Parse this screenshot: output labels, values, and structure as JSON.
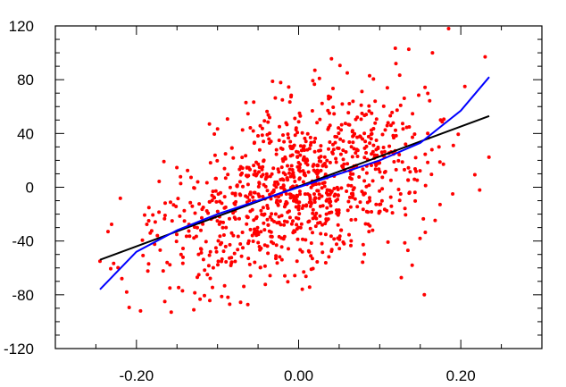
{
  "chart_data": {
    "type": "scatter",
    "title": "",
    "xlabel": "",
    "ylabel": "",
    "xlim": [
      -0.3,
      0.3
    ],
    "ylim": [
      -120,
      120
    ],
    "grid": false,
    "x_ticks": [
      {
        "value": -0.2,
        "label": "-0.20"
      },
      {
        "value": 0.0,
        "label": "0.00"
      },
      {
        "value": 0.2,
        "label": "0.20"
      }
    ],
    "x_minor_step": 0.05,
    "y_ticks": [
      {
        "value": 120,
        "label": "120"
      },
      {
        "value": 80,
        "label": "80"
      },
      {
        "value": 40,
        "label": "40"
      },
      {
        "value": 0,
        "label": "0"
      },
      {
        "value": -40,
        "label": "-40"
      },
      {
        "value": -80,
        "label": "-80"
      },
      {
        "value": -120,
        "label": "-120"
      }
    ],
    "y_minor_step": 10,
    "scatter": {
      "color": "#ff0000",
      "count": 1000,
      "slope": 220,
      "noise_sd": 30,
      "x_range": [
        -0.245,
        0.235
      ],
      "points_sample": [
        [
          -0.245,
          -55
        ],
        [
          -0.235,
          -33
        ],
        [
          -0.218,
          -68
        ],
        [
          -0.212,
          -78
        ],
        [
          -0.195,
          -92
        ],
        [
          -0.185,
          -57
        ],
        [
          -0.165,
          -85
        ],
        [
          -0.145,
          -50
        ],
        [
          -0.11,
          47
        ],
        [
          -0.085,
          -87
        ],
        [
          -0.065,
          63
        ],
        [
          -0.02,
          65
        ],
        [
          0.02,
          87
        ],
        [
          0.06,
          85
        ],
        [
          0.09,
          55
        ],
        [
          0.12,
          92
        ],
        [
          0.14,
          -58
        ],
        [
          0.155,
          -80
        ],
        [
          0.165,
          100
        ],
        [
          0.175,
          50
        ],
        [
          0.185,
          118
        ],
        [
          0.19,
          -5
        ],
        [
          0.205,
          75
        ],
        [
          0.23,
          97
        ]
      ]
    },
    "lines": [
      {
        "kind": "linear-fit",
        "color": "#000000",
        "x": [
          -0.245,
          0.235
        ],
        "y": [
          -54,
          53
        ]
      },
      {
        "kind": "cubic-fit",
        "color": "#0000ff",
        "x": [
          -0.245,
          -0.2,
          -0.15,
          -0.1,
          -0.05,
          0.0,
          0.05,
          0.1,
          0.15,
          0.2,
          0.235
        ],
        "y": [
          -76,
          -48,
          -32,
          -20,
          -10,
          0,
          10,
          20,
          33,
          57,
          82
        ]
      }
    ]
  }
}
